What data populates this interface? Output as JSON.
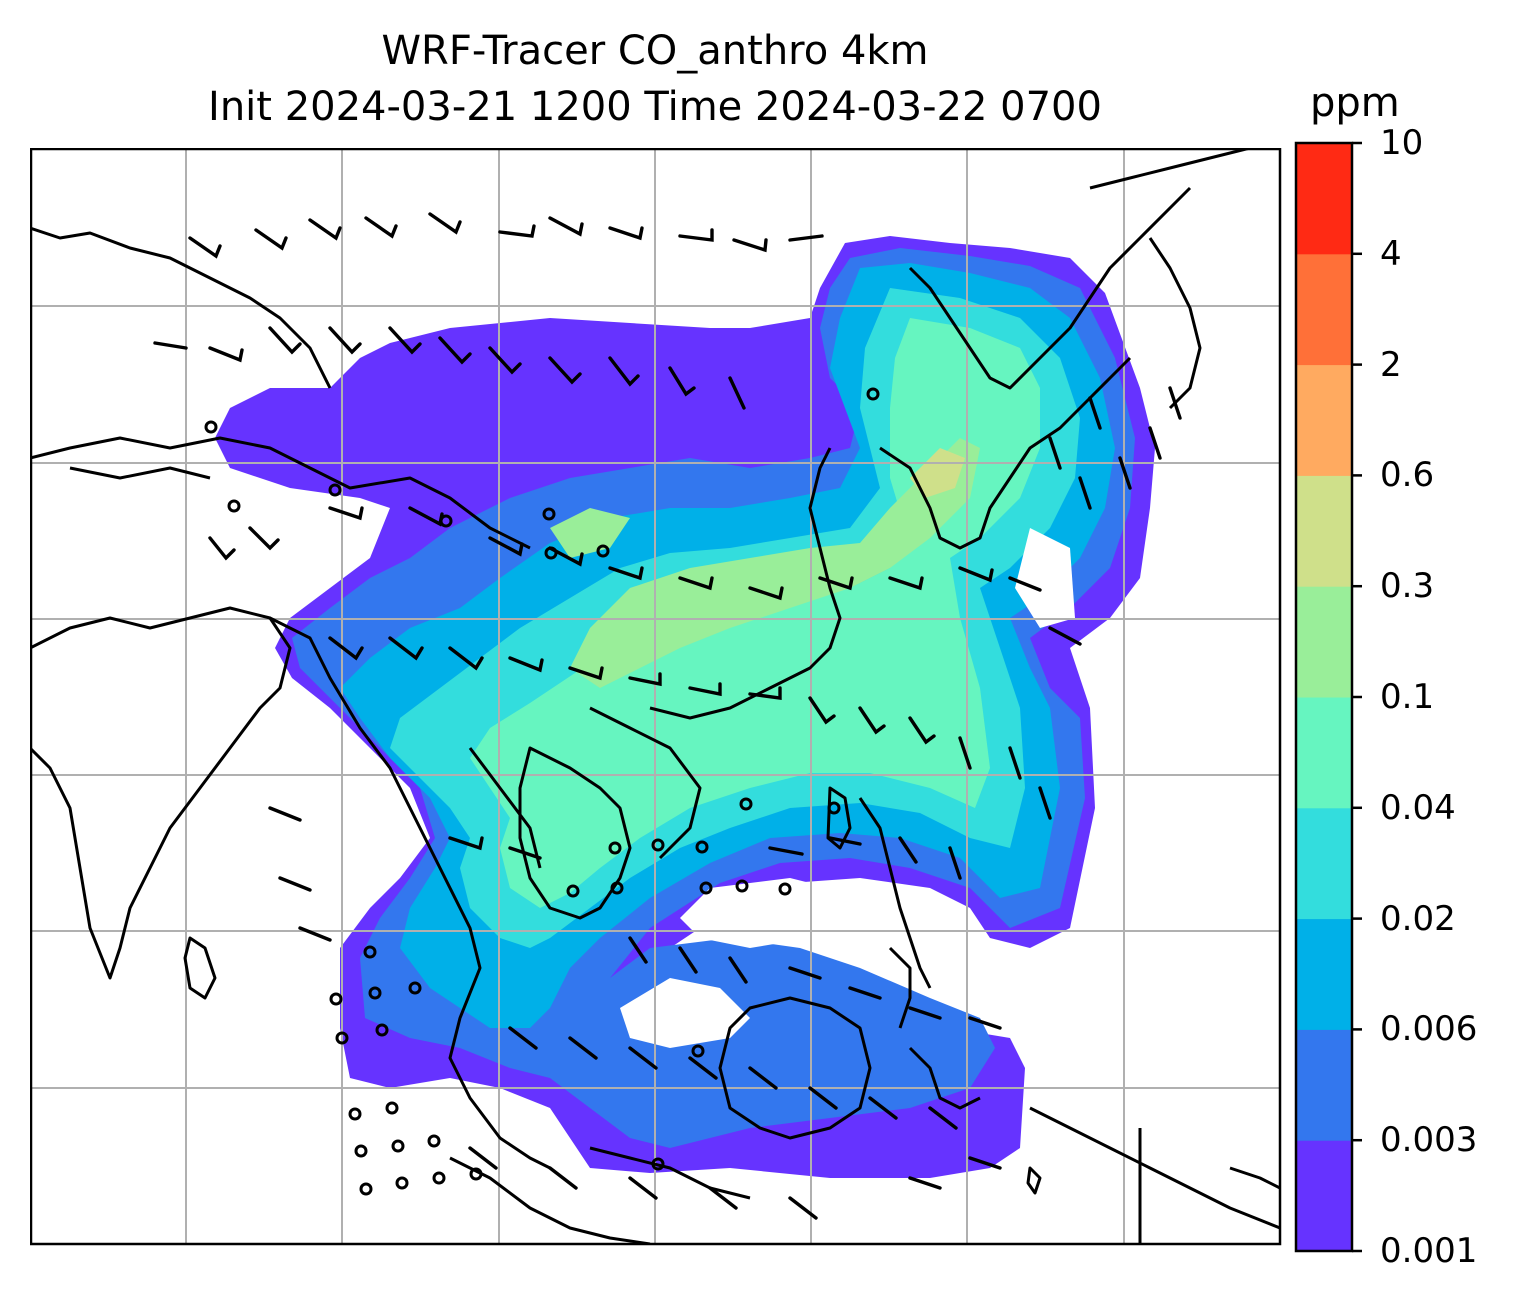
{
  "title_line1": "WRF-Tracer CO_anthro 4km",
  "title_line2": "Init 2024-03-21 1200 Time 2024-03-22 0700",
  "colorbar": {
    "unit": "ppm",
    "ticks": [
      "0.001",
      "0.003",
      "0.006",
      "0.02",
      "0.04",
      "0.1",
      "0.3",
      "0.6",
      "2",
      "4",
      "10"
    ],
    "colors": [
      "#6633ff",
      "#3377ee",
      "#00b0e8",
      "#33dddd",
      "#66f5c0",
      "#99ee99",
      "#cfe08a",
      "#ffaa60",
      "#ff7038",
      "#ff2a14"
    ]
  },
  "map": {
    "gridlines": "on",
    "colors": {
      "coast": "#000000",
      "grid": "#b0b0b0",
      "frame": "#000000"
    }
  }
}
